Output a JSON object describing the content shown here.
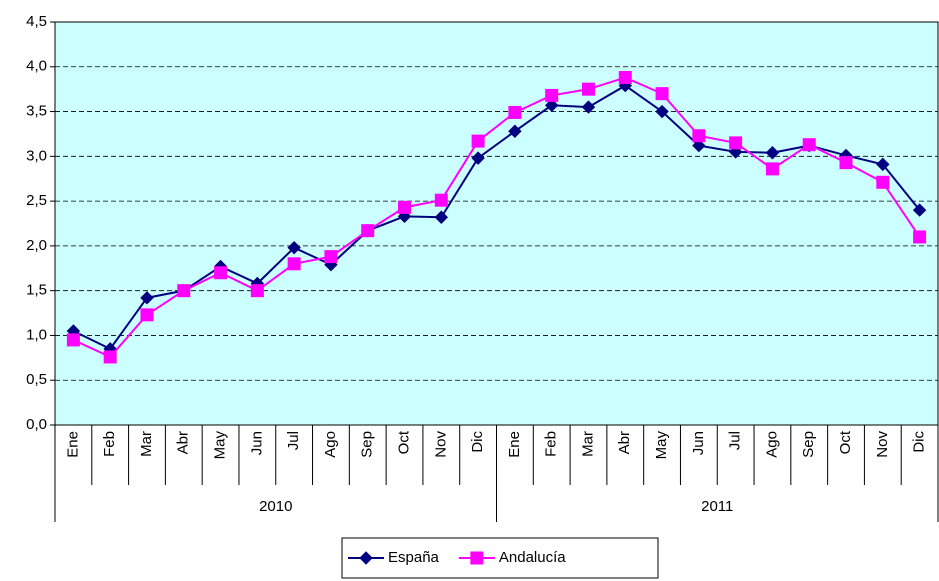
{
  "chart_data": {
    "type": "line",
    "categories": [
      "Ene",
      "Feb",
      "Mar",
      "Abr",
      "May",
      "Jun",
      "Jul",
      "Ago",
      "Sep",
      "Oct",
      "Nov",
      "Dic",
      "Ene",
      "Feb",
      "Mar",
      "Abr",
      "May",
      "Jun",
      "Jul",
      "Ago",
      "Sep",
      "Oct",
      "Nov",
      "Dic"
    ],
    "category_groups": [
      "2010",
      "2011"
    ],
    "series": [
      {
        "name": "España",
        "color": "#000080",
        "marker": "diamond",
        "values": [
          1.05,
          0.85,
          1.42,
          1.5,
          1.77,
          1.58,
          1.98,
          1.79,
          2.17,
          2.33,
          2.32,
          2.98,
          3.28,
          3.57,
          3.55,
          3.79,
          3.5,
          3.12,
          3.05,
          3.04,
          3.12,
          3.01,
          2.91,
          2.4
        ]
      },
      {
        "name": "Andalucía",
        "color": "#ff00ff",
        "marker": "square",
        "values": [
          0.95,
          0.76,
          1.23,
          1.5,
          1.7,
          1.5,
          1.8,
          1.88,
          2.17,
          2.43,
          2.51,
          3.17,
          3.49,
          3.68,
          3.75,
          3.88,
          3.7,
          3.23,
          3.15,
          2.86,
          3.13,
          2.93,
          2.71,
          2.1
        ]
      }
    ],
    "ylim": [
      0,
      4.5
    ],
    "yticks": [
      {
        "value": 0,
        "label": "0,0"
      },
      {
        "value": 0.5,
        "label": "0,5"
      },
      {
        "value": 1,
        "label": "1,0"
      },
      {
        "value": 1.5,
        "label": "1,5"
      },
      {
        "value": 2,
        "label": "2,0"
      },
      {
        "value": 2.5,
        "label": "2,5"
      },
      {
        "value": 3,
        "label": "3,0"
      },
      {
        "value": 3.5,
        "label": "3,5"
      },
      {
        "value": 4,
        "label": "4,0"
      },
      {
        "value": 4.5,
        "label": "4,5"
      }
    ],
    "grid": true,
    "plot_background": "#ccffff",
    "legend": "bottom"
  }
}
